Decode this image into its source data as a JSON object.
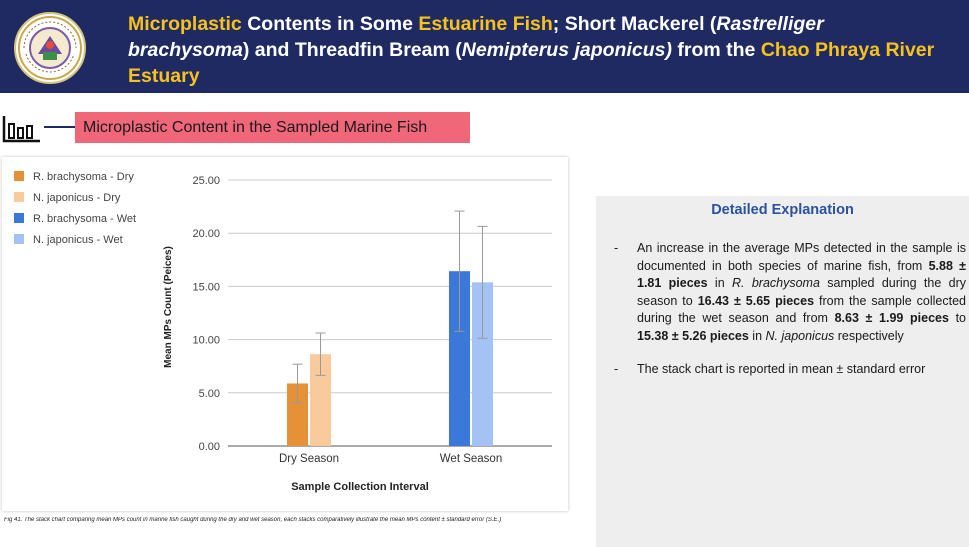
{
  "header": {
    "title_parts": [
      {
        "text": "Microplastic",
        "style": "hl"
      },
      {
        "text": " Contents in Some ",
        "style": ""
      },
      {
        "text": "Estuarine Fish",
        "style": "hl"
      },
      {
        "text": "; Short Mackerel (",
        "style": ""
      },
      {
        "text": "Rastrelliger brachysoma",
        "style": "i"
      },
      {
        "text": ") and Threadfin Bream (",
        "style": ""
      },
      {
        "text": "Nemipterus japonicus)",
        "style": "i"
      },
      {
        "text": " from the ",
        "style": ""
      },
      {
        "text": "Chao Phraya River Estuary",
        "style": "hl"
      }
    ]
  },
  "section": {
    "label": "Microplastic Content in the Sampled Marine Fish"
  },
  "chart_data": {
    "type": "bar",
    "categories": [
      "Dry Season",
      "Wet Season"
    ],
    "series": [
      {
        "name": "R. brachysoma - Dry",
        "values": [
          5.88,
          null
        ],
        "errors": [
          1.81,
          null
        ],
        "color": "#e69138"
      },
      {
        "name": "N. japonicus - Dry",
        "values": [
          8.63,
          null
        ],
        "errors": [
          1.99,
          null
        ],
        "color": "#f9cb9c"
      },
      {
        "name": "R. brachysoma - Wet",
        "values": [
          null,
          16.43
        ],
        "errors": [
          null,
          5.65
        ],
        "color": "#3c78d8"
      },
      {
        "name": "N. japonicus - Wet",
        "values": [
          null,
          15.38
        ],
        "errors": [
          null,
          5.26
        ],
        "color": "#a4c2f4"
      }
    ],
    "yticks": [
      "0.00",
      "5.00",
      "10.00",
      "15.00",
      "20.00",
      "25.00"
    ],
    "xlabel": "Sample Collection Interval",
    "ylabel": "Mean MPs Count (Peices)",
    "ylim": [
      0,
      25
    ],
    "grid": true,
    "legend_position": "top-left"
  },
  "caption": "Fig 41. The stack chart comparing mean MPs count in marine fish caught during the dry and wet season, each stacks comparatively illustrate the mean MPs content ± standard error (S.E.)",
  "explanation": {
    "heading": "Detailed Explanation",
    "bullets": [
      [
        {
          "t": "An increase in the average MPs detected in the sample is documented in both species of marine fish, from ",
          "s": ""
        },
        {
          "t": "5.88 ± 1.81 pieces",
          "s": "b"
        },
        {
          "t": " in ",
          "s": ""
        },
        {
          "t": "R. brachysoma",
          "s": "i"
        },
        {
          "t": " sampled during the dry season to ",
          "s": ""
        },
        {
          "t": "16.43 ± 5.65 pieces",
          "s": "b"
        },
        {
          "t": " from the sample collected during the wet season and from ",
          "s": ""
        },
        {
          "t": "8.63 ± 1.99 pieces",
          "s": "b"
        },
        {
          "t": " to ",
          "s": ""
        },
        {
          "t": "15.38 ± 5.26 pieces",
          "s": "b"
        },
        {
          "t": " in ",
          "s": ""
        },
        {
          "t": "N. japonicus",
          "s": "i"
        },
        {
          "t": " respectively",
          "s": ""
        }
      ],
      [
        {
          "t": "The stack chart is reported in mean ± standard error",
          "s": ""
        }
      ]
    ]
  },
  "colors": {
    "header_bg": "#1f2a63",
    "highlight": "#f7c21b",
    "section_bg": "#f0677a",
    "heading_blue": "#2a52a0"
  }
}
